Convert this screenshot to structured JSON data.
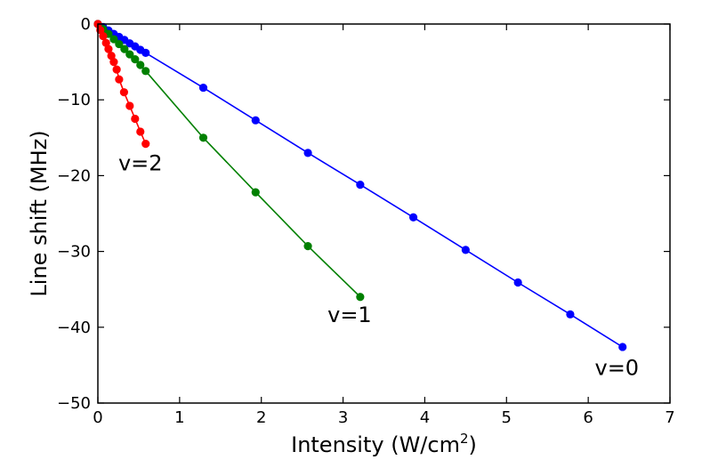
{
  "chart_data": {
    "type": "line",
    "title": "",
    "xlabel": "Intensity (W/cm",
    "xlabel_sup": "2",
    "xlabel_tail": ")",
    "ylabel": "Line shift (MHz)",
    "xlim": [
      0,
      7
    ],
    "ylim": [
      -50,
      0
    ],
    "x_ticks": [
      0,
      1,
      2,
      3,
      4,
      5,
      6,
      7
    ],
    "y_ticks": [
      0,
      -10,
      -20,
      -30,
      -40,
      -50
    ],
    "x_tick_labels": [
      "0",
      "1",
      "2",
      "3",
      "4",
      "5",
      "6",
      "7"
    ],
    "y_tick_labels": [
      "0",
      "−10",
      "−20",
      "−30",
      "−40",
      "−50"
    ],
    "grid": false,
    "series": [
      {
        "name": "v=0",
        "color": "#0000ff",
        "x": [
          0.0,
          0.065,
          0.13,
          0.195,
          0.26,
          0.325,
          0.39,
          0.455,
          0.52,
          0.585,
          1.29,
          1.93,
          2.57,
          3.21,
          3.86,
          4.5,
          5.14,
          5.78,
          6.42
        ],
        "y": [
          0.0,
          -0.4,
          -0.85,
          -1.3,
          -1.7,
          -2.1,
          -2.55,
          -2.95,
          -3.4,
          -3.8,
          -8.4,
          -12.7,
          -17.0,
          -21.2,
          -25.5,
          -29.8,
          -34.1,
          -38.3,
          -42.6
        ]
      },
      {
        "name": "v=1",
        "color": "#008000",
        "x": [
          0.0,
          0.065,
          0.13,
          0.195,
          0.26,
          0.325,
          0.39,
          0.455,
          0.52,
          0.585,
          1.29,
          1.93,
          2.57,
          3.21
        ],
        "y": [
          0.0,
          -0.65,
          -1.3,
          -2.0,
          -2.65,
          -3.3,
          -4.0,
          -4.65,
          -5.4,
          -6.2,
          -15.0,
          -22.2,
          -29.3,
          -36.0
        ]
      },
      {
        "name": "v=2",
        "color": "#ff0000",
        "x": [
          0.0,
          0.03,
          0.065,
          0.1,
          0.13,
          0.165,
          0.195,
          0.23,
          0.26,
          0.32,
          0.39,
          0.455,
          0.52,
          0.585
        ],
        "y": [
          0.0,
          -0.8,
          -1.6,
          -2.5,
          -3.3,
          -4.2,
          -5.0,
          -6.0,
          -7.3,
          -9.0,
          -10.8,
          -12.5,
          -14.2,
          -15.8
        ]
      }
    ],
    "annotations": [
      {
        "text": "v=2",
        "x": 0.25,
        "y": -19.3
      },
      {
        "text": "v=1",
        "x": 2.81,
        "y": -39.3
      },
      {
        "text": "v=0",
        "x": 6.08,
        "y": -46.3
      }
    ]
  }
}
